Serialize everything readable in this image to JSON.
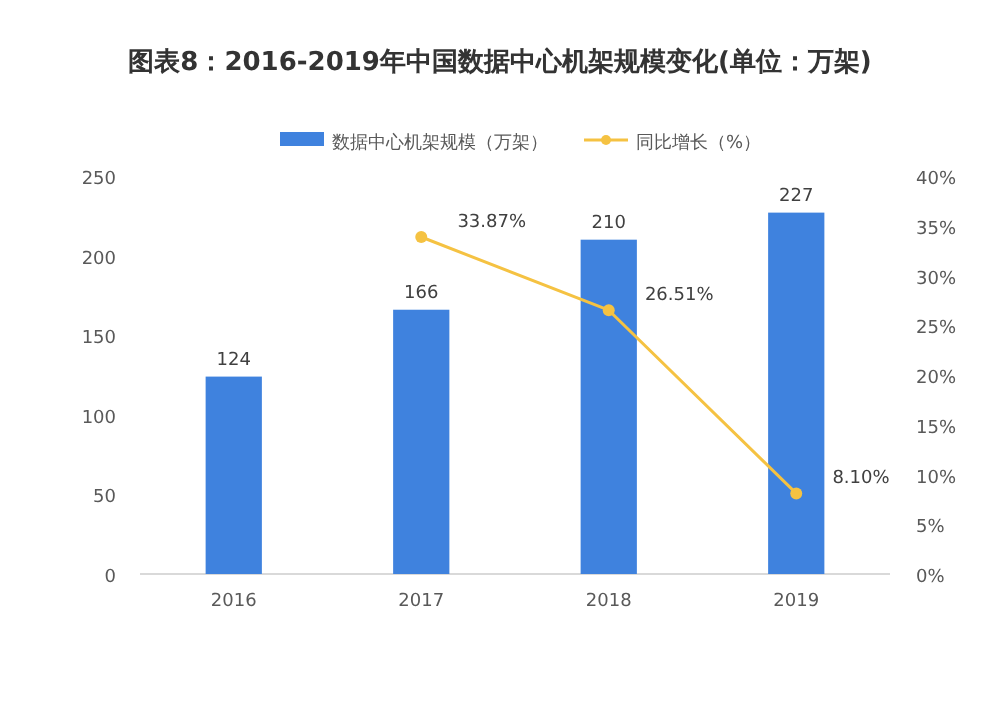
{
  "chart_data": {
    "type": "bar",
    "title": "图表8：2016-2019年中国数据中心机架规模变化(单位：万架)",
    "categories": [
      "2016",
      "2017",
      "2018",
      "2019"
    ],
    "series": [
      {
        "name": "数据中心机架规模（万架）",
        "color": "#3f82de",
        "values": [
          124,
          166,
          210,
          227
        ],
        "data_labels": true
      },
      {
        "name": "同比增长（%）",
        "type": "line",
        "axis": "y2",
        "color": "#f5c242",
        "marker": "circle",
        "values": [
          null,
          33.87,
          26.51,
          8.1
        ],
        "value_labels": [
          null,
          "33.87%",
          "26.51%",
          "8.10%"
        ]
      }
    ],
    "ylim": [
      0,
      250
    ],
    "yticks": [
      0,
      50,
      100,
      150,
      200,
      250
    ],
    "y2lim": [
      0,
      40
    ],
    "y2ticks": [
      {
        "value": 0,
        "label": "0%"
      },
      {
        "value": 5,
        "label": "5%"
      },
      {
        "value": 10,
        "label": "10%"
      },
      {
        "value": 15,
        "label": "15%"
      },
      {
        "value": 20,
        "label": "20%"
      },
      {
        "value": 25,
        "label": "25%"
      },
      {
        "value": 30,
        "label": "30%"
      },
      {
        "value": 35,
        "label": "35%"
      },
      {
        "value": 40,
        "label": "40%"
      }
    ],
    "legend": "top"
  }
}
